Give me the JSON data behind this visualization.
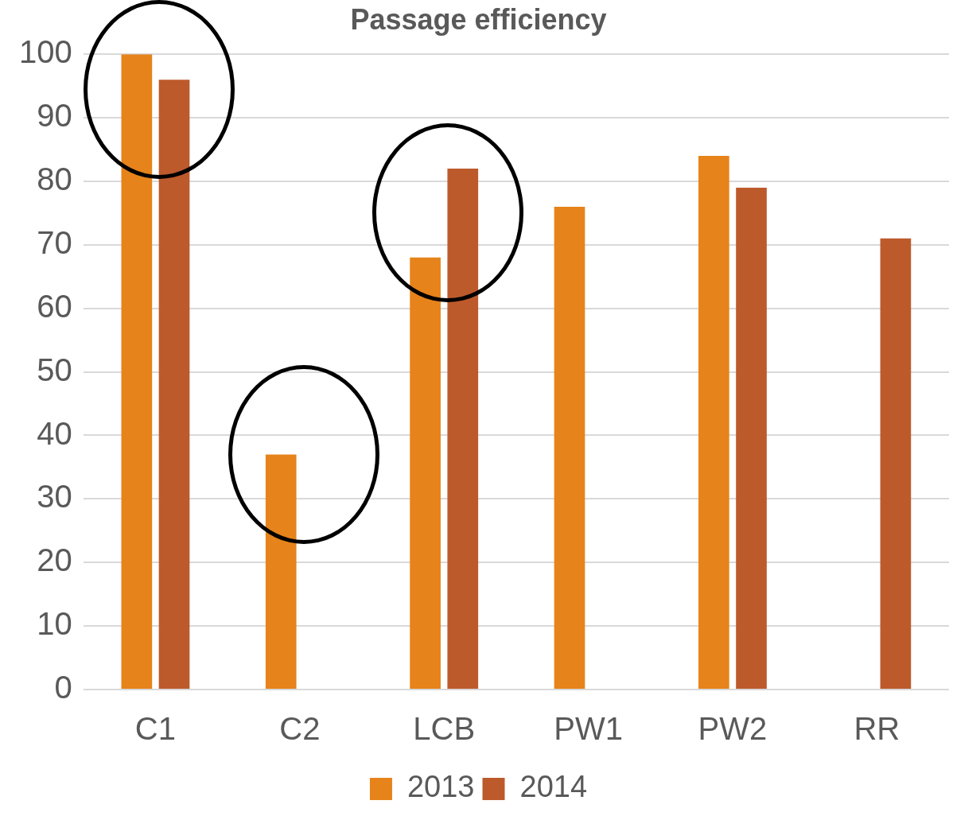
{
  "chart_data": {
    "type": "bar",
    "title": "Passage efficiency",
    "categories": [
      "C1",
      "C2",
      "LCB",
      "PW1",
      "PW2",
      "RR"
    ],
    "series": [
      {
        "name": "2013",
        "color": "#e6831a",
        "values": [
          100,
          37,
          68,
          76,
          84,
          null
        ]
      },
      {
        "name": "2014",
        "color": "#bd5a2c",
        "values": [
          96,
          null,
          82,
          null,
          79,
          71
        ]
      }
    ],
    "ylim": [
      0,
      100
    ],
    "yticks": [
      0,
      10,
      20,
      30,
      40,
      50,
      60,
      70,
      80,
      90,
      100
    ],
    "grid": "y",
    "legend": "bottom"
  }
}
